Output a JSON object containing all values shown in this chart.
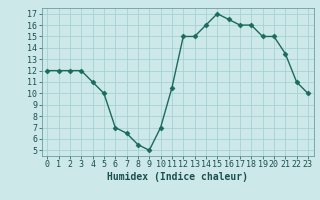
{
  "xlabel": "Humidex (Indice chaleur)",
  "x": [
    0,
    1,
    2,
    3,
    4,
    5,
    6,
    7,
    8,
    9,
    10,
    11,
    12,
    13,
    14,
    15,
    16,
    17,
    18,
    19,
    20,
    21,
    22,
    23
  ],
  "y": [
    12,
    12,
    12,
    12,
    11,
    10,
    7,
    6.5,
    5.5,
    5,
    7,
    10.5,
    15,
    15,
    16,
    17,
    16.5,
    16,
    16,
    15,
    15,
    13.5,
    11,
    10
  ],
  "line_color": "#1a6b5a",
  "marker_color": "#1a6b5a",
  "bg_color": "#cde8e8",
  "grid_color": "#9fcfcf",
  "xlim": [
    -0.5,
    23.5
  ],
  "ylim": [
    4.5,
    17.5
  ],
  "yticks": [
    5,
    6,
    7,
    8,
    9,
    10,
    11,
    12,
    13,
    14,
    15,
    16,
    17
  ],
  "xticks": [
    0,
    1,
    2,
    3,
    4,
    5,
    6,
    7,
    8,
    9,
    10,
    11,
    12,
    13,
    14,
    15,
    16,
    17,
    18,
    19,
    20,
    21,
    22,
    23
  ],
  "xtick_labels": [
    "0",
    "1",
    "2",
    "3",
    "4",
    "5",
    "6",
    "7",
    "8",
    "9",
    "10",
    "11",
    "12",
    "13",
    "14",
    "15",
    "16",
    "17",
    "18",
    "19",
    "20",
    "21",
    "22",
    "23"
  ],
  "label_fontsize": 7,
  "tick_fontsize": 6,
  "marker_size": 2.5,
  "line_width": 1.0
}
